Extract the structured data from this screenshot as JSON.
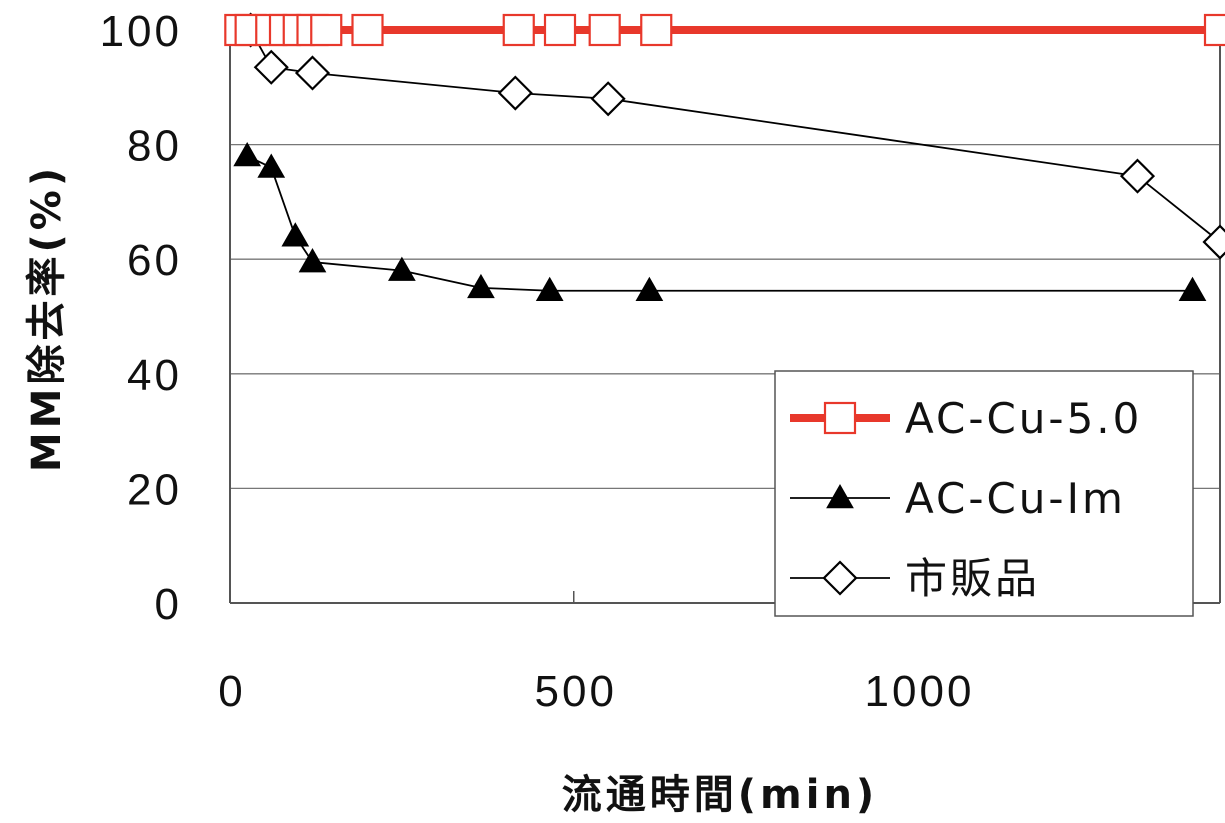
{
  "chart_data": {
    "type": "line",
    "xlabel": "流通時間(min)",
    "ylabel": "MM除去率(%)",
    "xlim": [
      0,
      1440
    ],
    "ylim": [
      0,
      100
    ],
    "xticks": [
      "0",
      "500",
      "1000"
    ],
    "xtick_values": [
      0,
      500,
      1000
    ],
    "yticks": [
      "0",
      "20",
      "40",
      "60",
      "80",
      "100"
    ],
    "ytick_values": [
      0,
      20,
      40,
      60,
      80,
      100
    ],
    "grid": "horizontal",
    "legend_position": "bottom-right",
    "series": [
      {
        "name": "AC-Cu-5.0",
        "color": "#e8382b",
        "marker": "square-open",
        "x": [
          15,
          30,
          45,
          60,
          80,
          100,
          120,
          140,
          200,
          420,
          480,
          545,
          620,
          1440
        ],
        "y": [
          100,
          100,
          100,
          100,
          100,
          100,
          100,
          100,
          100,
          100,
          100,
          100,
          100,
          100
        ],
        "markers": [
          15,
          30,
          60,
          80,
          100,
          120,
          140,
          200,
          420,
          480,
          545,
          620,
          1440
        ]
      },
      {
        "name": "AC-Cu-Im",
        "color": "#000000",
        "marker": "triangle-filled",
        "x": [
          25,
          60,
          95,
          120,
          250,
          365,
          465,
          610,
          1400
        ],
        "y": [
          78,
          76,
          64,
          59.5,
          58,
          55,
          54.5,
          54.5,
          54.5
        ],
        "markers": [
          25,
          60,
          95,
          120,
          250,
          365,
          465,
          610,
          1400
        ]
      },
      {
        "name": "市販品",
        "color": "#000000",
        "marker": "diamond-open",
        "x": [
          30,
          60,
          120,
          415,
          550,
          1320,
          1440
        ],
        "y": [
          100,
          93.5,
          92.5,
          89,
          88,
          74.5,
          63
        ],
        "markers": [
          30,
          60,
          120,
          415,
          550,
          1320,
          1440
        ]
      }
    ]
  }
}
